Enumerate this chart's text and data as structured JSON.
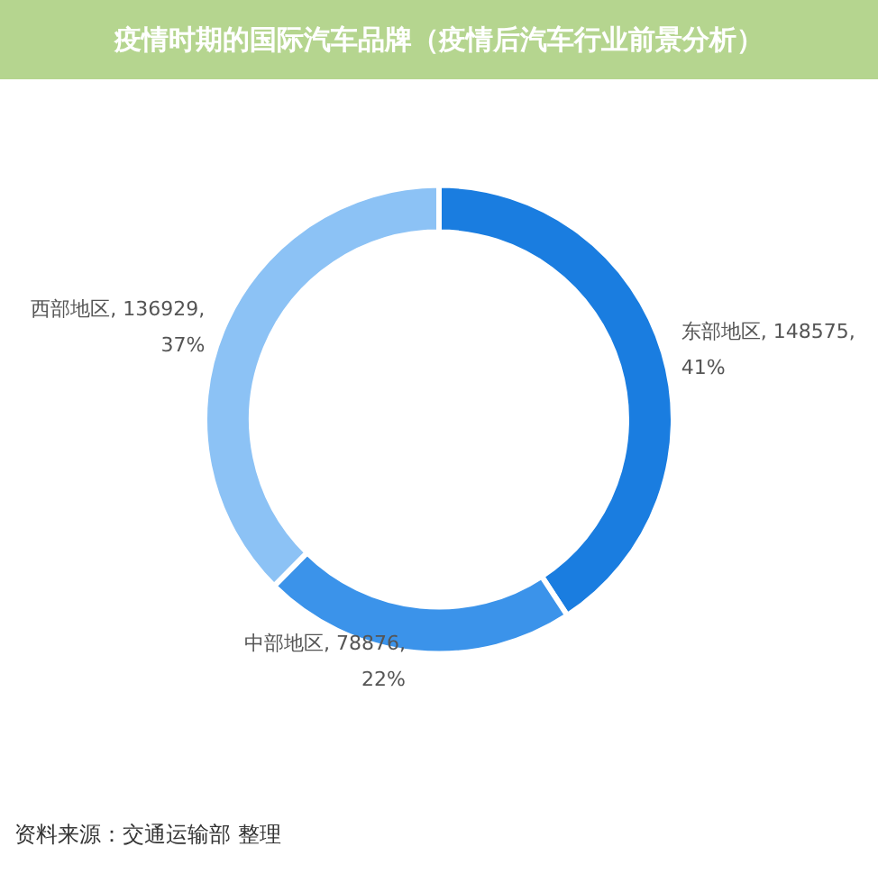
{
  "chart_data": {
    "type": "donut",
    "title": "疫情时期的国际汽车品牌（疫情后汽车行业前景分析）",
    "categories": [
      "东部地区",
      "中部地区",
      "西部地区"
    ],
    "values": [
      148575,
      78876,
      136929
    ],
    "value_labels": [
      "148575, 41%",
      "78876, 22%",
      "136929, 37%"
    ],
    "colors": [
      "#1a7de0",
      "#3b93ea",
      "#8cc2f5"
    ],
    "annotations": [
      "资料来源：交通运输部 整理"
    ],
    "legend": false
  }
}
